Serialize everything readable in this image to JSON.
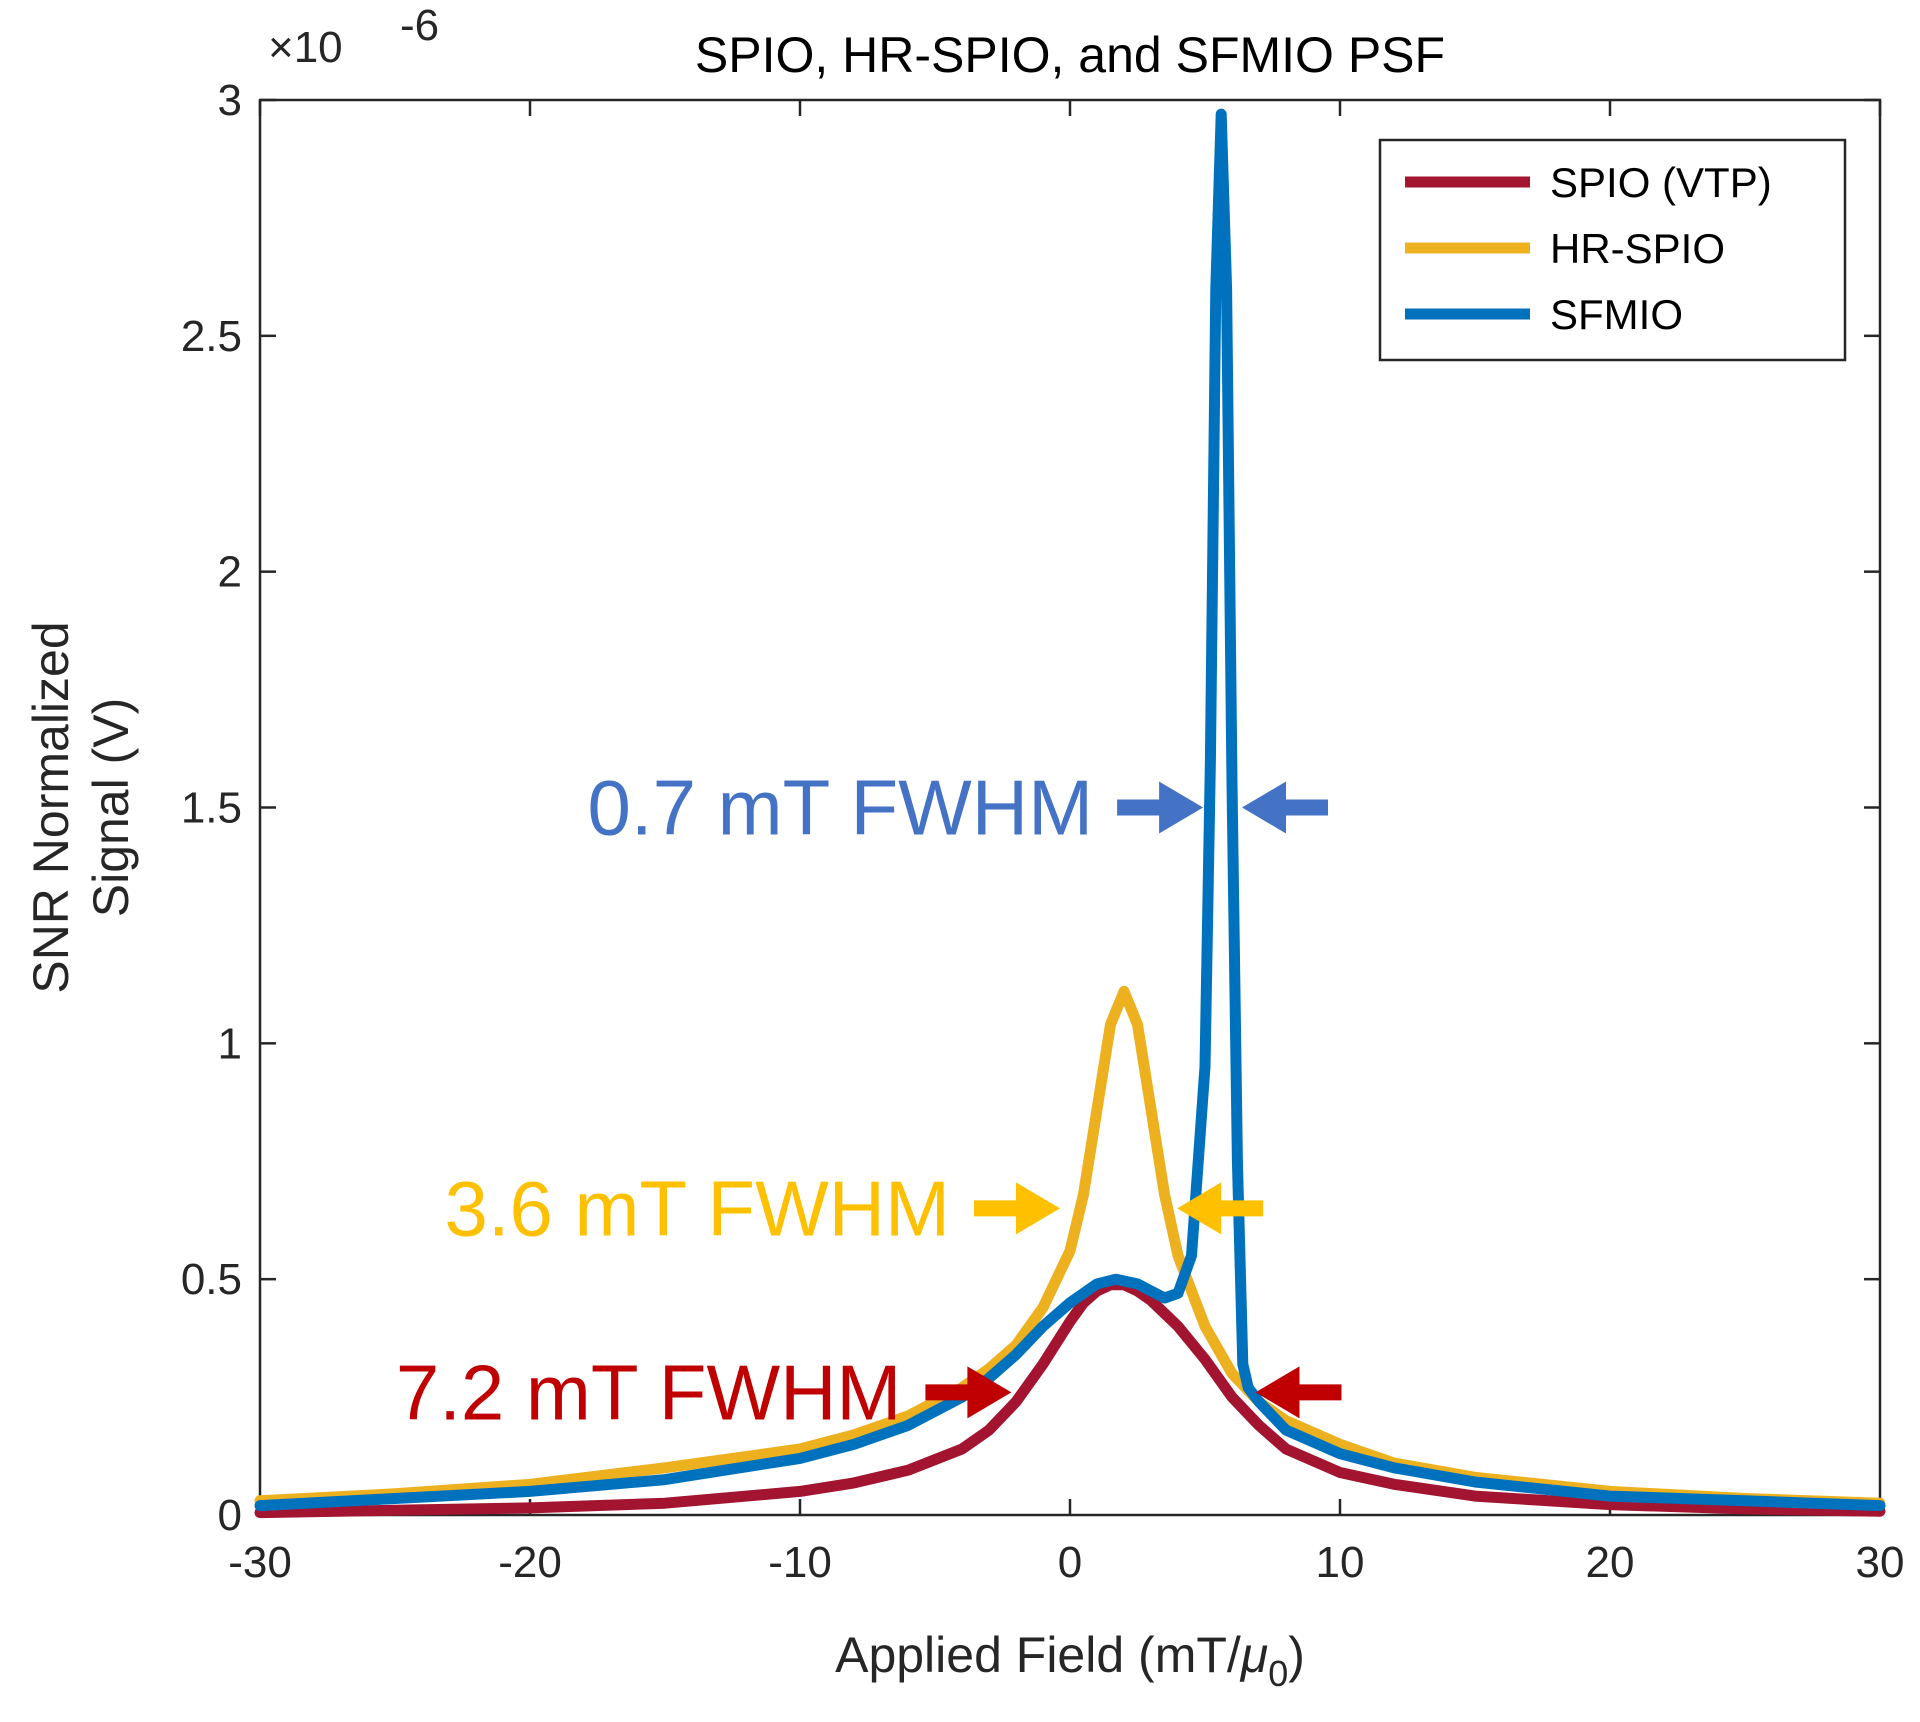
{
  "chart_data": {
    "type": "line",
    "title": "SPIO, HR-SPIO, and SFMIO PSF",
    "xlabel": "Applied Field (mT/",
    "xlabel_symbol": "μ",
    "xlabel_subscript": "0",
    "xlabel_close": ")",
    "ylabel_line1": "SNR Normalized",
    "ylabel_line2": "Signal (V)",
    "y_exponent_prefix": "×10",
    "y_exponent": "-6",
    "xlim": [
      -30,
      30
    ],
    "ylim": [
      0,
      3
    ],
    "xticks": [
      -30,
      -20,
      -10,
      0,
      10,
      20,
      30
    ],
    "yticks": [
      0,
      0.5,
      1,
      1.5,
      2,
      2.5,
      3
    ],
    "xtick_labels": [
      "-30",
      "-20",
      "-10",
      "0",
      "10",
      "20",
      "30"
    ],
    "ytick_labels": [
      "0",
      "0.5",
      "1",
      "1.5",
      "2",
      "2.5",
      "3"
    ],
    "legend_position": "top-right",
    "grid": false,
    "series": [
      {
        "name": "SPIO (VTP)",
        "color": "#A2142F",
        "x": [
          -30,
          -25,
          -20,
          -15,
          -10,
          -8,
          -6,
          -4,
          -3,
          -2,
          -1,
          0,
          0.5,
          1,
          1.5,
          2,
          2.5,
          3,
          4,
          5,
          6,
          7,
          8,
          10,
          12,
          15,
          20,
          25,
          30
        ],
        "y": [
          0.005,
          0.01,
          0.015,
          0.025,
          0.05,
          0.068,
          0.095,
          0.14,
          0.18,
          0.24,
          0.32,
          0.41,
          0.45,
          0.475,
          0.488,
          0.488,
          0.475,
          0.455,
          0.4,
          0.33,
          0.25,
          0.19,
          0.14,
          0.09,
          0.065,
          0.04,
          0.022,
          0.013,
          0.008
        ]
      },
      {
        "name": "HR-SPIO",
        "color": "#EDB120",
        "x": [
          -30,
          -25,
          -20,
          -15,
          -10,
          -8,
          -6,
          -4,
          -3,
          -2,
          -1,
          0,
          0.5,
          1,
          1.5,
          2,
          2.5,
          3,
          3.5,
          4,
          5,
          6,
          7,
          8,
          10,
          12,
          15,
          20,
          25,
          30
        ],
        "y": [
          0.03,
          0.045,
          0.065,
          0.1,
          0.14,
          0.17,
          0.21,
          0.27,
          0.31,
          0.36,
          0.44,
          0.56,
          0.68,
          0.86,
          1.04,
          1.11,
          1.04,
          0.86,
          0.68,
          0.55,
          0.4,
          0.3,
          0.24,
          0.2,
          0.15,
          0.11,
          0.08,
          0.05,
          0.035,
          0.025
        ]
      },
      {
        "name": "SFMIO",
        "color": "#0072BD",
        "x": [
          -30,
          -25,
          -20,
          -15,
          -10,
          -8,
          -6,
          -4,
          -3,
          -2,
          -1,
          0,
          1,
          1.7,
          2.5,
          3,
          3.5,
          4,
          4.5,
          5,
          5.2,
          5.4,
          5.6,
          5.8,
          6,
          6.2,
          6.4,
          6.6,
          7,
          7.5,
          8,
          10,
          12,
          15,
          20,
          25,
          30
        ],
        "y": [
          0.02,
          0.035,
          0.05,
          0.075,
          0.12,
          0.15,
          0.19,
          0.25,
          0.29,
          0.34,
          0.4,
          0.45,
          0.49,
          0.5,
          0.49,
          0.475,
          0.46,
          0.47,
          0.55,
          0.95,
          1.6,
          2.6,
          2.97,
          2.6,
          1.55,
          0.75,
          0.32,
          0.27,
          0.24,
          0.21,
          0.18,
          0.13,
          0.1,
          0.07,
          0.04,
          0.03,
          0.02
        ]
      }
    ],
    "annotations": [
      {
        "text": "0.7 mT FWHM",
        "color": "#4472C4",
        "y": 1.5,
        "left_x": 5.3,
        "right_x": 6.0
      },
      {
        "text": "3.6 mT FWHM",
        "color": "#FFC000",
        "y": 0.65,
        "left_x": 0.0,
        "right_x": 3.6
      },
      {
        "text": "7.2 mT FWHM",
        "color": "#C00000",
        "y": 0.26,
        "left_x": -1.8,
        "right_x": 6.5
      }
    ]
  }
}
